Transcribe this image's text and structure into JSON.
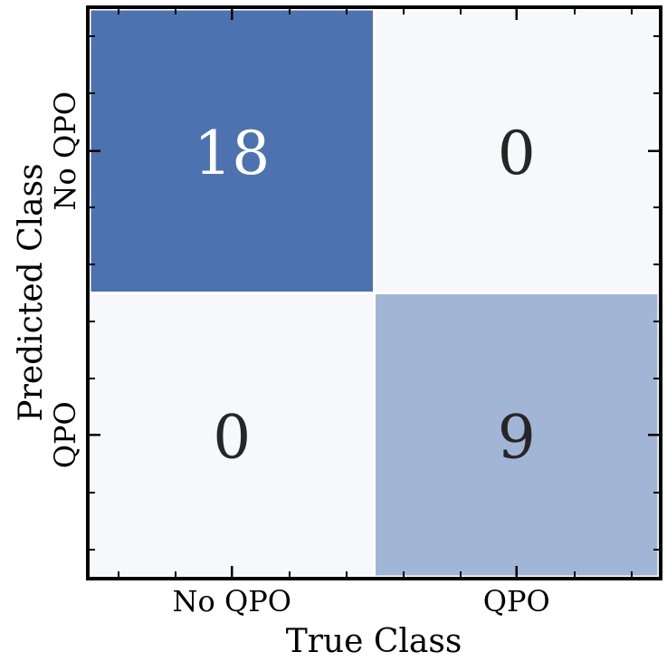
{
  "chart_data": {
    "type": "heatmap",
    "title": "",
    "xlabel": "True Class",
    "ylabel": "Predicted Class",
    "x_categories": [
      "No QPO",
      "QPO"
    ],
    "y_categories": [
      "No QPO",
      "QPO"
    ],
    "values": [
      [
        18,
        0
      ],
      [
        0,
        9
      ]
    ],
    "colormap": {
      "low": "#f6f8fb",
      "high": "#4c72b0"
    },
    "annotation_colors": {
      "on_dark": "#ffffff",
      "on_light": "#262626"
    },
    "grid": false,
    "legend": "none"
  }
}
